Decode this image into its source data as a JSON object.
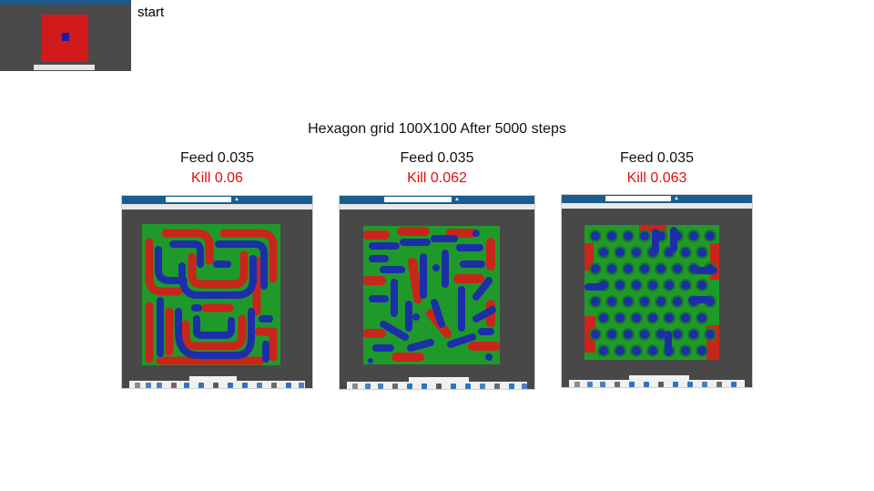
{
  "start": {
    "label": "start"
  },
  "figure": {
    "title": "Hexagon grid 100X100 After 5000 steps"
  },
  "panels": [
    {
      "feed_label": "Feed 0.035",
      "kill_label": "Kill 0.06",
      "pattern": "labyrinth stripes"
    },
    {
      "feed_label": "Feed 0.035",
      "kill_label": "Kill 0.062",
      "pattern": "worms and spots"
    },
    {
      "feed_label": "Feed 0.035",
      "kill_label": "Kill 0.063",
      "pattern": "spots"
    }
  ],
  "colors": {
    "background": "#ffffff",
    "kill_text": "#e01010",
    "viewer_bg": "#484848",
    "viewer_topbar": "#1a5d8f",
    "pattern_red": "#c8261a",
    "pattern_green": "#1f9a2a",
    "pattern_blue": "#1c2fa8"
  }
}
